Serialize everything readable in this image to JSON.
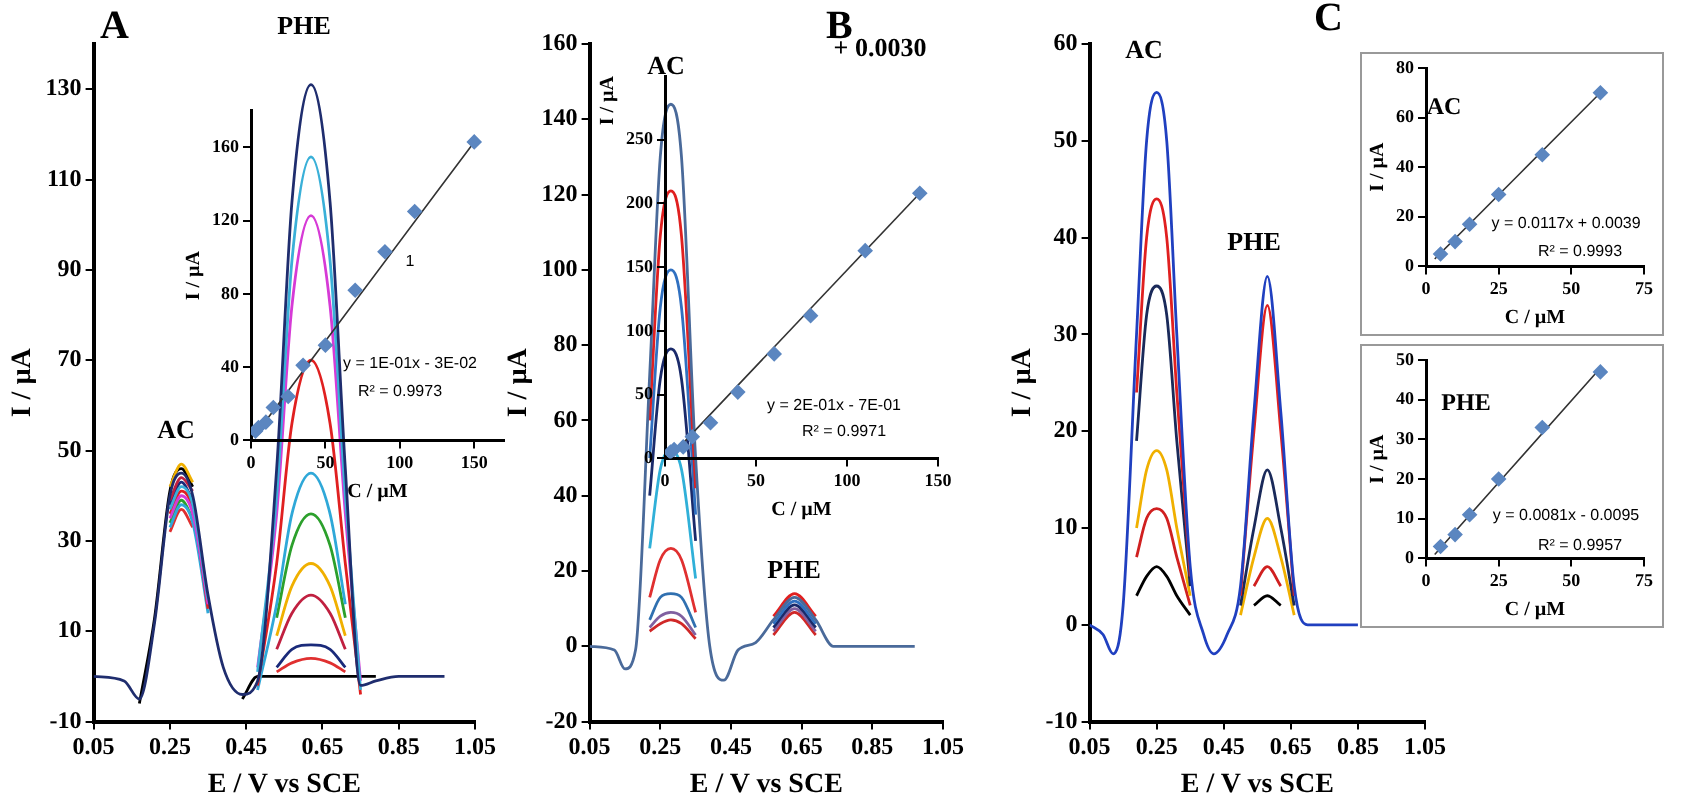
{
  "chart_data": [
    {
      "type": "line",
      "title": "A",
      "xlabel": "E / V vs SCE",
      "ylabel": "I / µA",
      "marker": "none",
      "xlim": [
        0.05,
        1.05
      ],
      "xticks": [
        0.05,
        0.25,
        0.45,
        0.65,
        0.85,
        1.05
      ],
      "ylim": [
        -10,
        140
      ],
      "yticks": [
        -10,
        10,
        30,
        50,
        70,
        90,
        110,
        130
      ],
      "x": [
        0.05,
        0.13,
        0.17,
        0.21,
        0.25,
        0.28,
        0.31,
        0.35,
        0.39,
        0.44,
        0.48,
        0.53,
        0.57,
        0.62,
        0.67,
        0.71,
        0.75,
        0.79,
        0.85,
        0.97
      ],
      "series": [
        {
          "color": "#1f2d6e",
          "values": [
            0,
            -1,
            -5,
            12,
            40,
            45,
            40,
            18,
            2,
            -4,
            -1,
            46,
            105,
            131,
            105,
            46,
            -2,
            -1,
            0,
            0
          ]
        },
        {
          "color": "#3ab0d8",
          "values": [
            null,
            null,
            null,
            null,
            37,
            42,
            38,
            17,
            null,
            null,
            1,
            40,
            92,
            115,
            92,
            40,
            -3,
            null,
            null,
            null
          ]
        },
        {
          "color": "#d63ad6",
          "values": [
            null,
            null,
            null,
            null,
            35,
            40,
            36,
            16,
            null,
            null,
            2,
            36,
            82,
            102,
            82,
            36,
            -1,
            null,
            null,
            null
          ]
        },
        {
          "color": "#e02020",
          "values": [
            null,
            null,
            null,
            null,
            36,
            41,
            37,
            15,
            null,
            null,
            -2,
            25,
            56,
            70,
            56,
            25,
            -4,
            null,
            null,
            null
          ]
        },
        {
          "color": "#2fa8d8",
          "values": [
            null,
            null,
            null,
            null,
            33,
            38,
            34,
            14,
            null,
            null,
            -3,
            16,
            36,
            45,
            36,
            16,
            null,
            null,
            null,
            null
          ]
        },
        {
          "color": "#2ca02c",
          "values": [
            null,
            null,
            null,
            null,
            34,
            39,
            35,
            null,
            null,
            null,
            null,
            13,
            29,
            36,
            29,
            13,
            null,
            null,
            null,
            null
          ]
        },
        {
          "color": "#f0b000",
          "values": [
            null,
            null,
            null,
            null,
            42,
            47,
            43,
            null,
            null,
            null,
            null,
            9,
            20,
            25,
            20,
            9,
            null,
            null,
            null,
            null
          ]
        },
        {
          "color": "#c02040",
          "values": [
            null,
            null,
            null,
            null,
            39,
            44,
            41,
            null,
            null,
            null,
            null,
            6,
            14,
            18,
            14,
            6,
            null,
            null,
            null,
            null
          ]
        },
        {
          "color": "#1a2a7a",
          "values": [
            null,
            null,
            null,
            null,
            38,
            43,
            39,
            null,
            null,
            null,
            null,
            2,
            6,
            7,
            6,
            2,
            null,
            null,
            null,
            null
          ]
        },
        {
          "color": "#e03030",
          "values": [
            null,
            null,
            null,
            null,
            32,
            37,
            33,
            null,
            null,
            null,
            null,
            1,
            3,
            4,
            3,
            1,
            null,
            null,
            null,
            null
          ]
        },
        {
          "color": "#000000",
          "values": [
            null,
            null,
            -6,
            13,
            41,
            46,
            42,
            null,
            null,
            -5,
            0,
            0,
            0,
            0,
            0,
            0,
            0,
            0,
            null,
            null
          ]
        }
      ],
      "annotations": [
        "AC",
        "PHE"
      ]
    },
    {
      "type": "scatter",
      "xlabel": "C / µM",
      "ylabel": "I / µA",
      "marker": "diamond",
      "xlim": [
        0,
        170
      ],
      "xticks": [
        0,
        50,
        100,
        150
      ],
      "ylim": [
        0,
        180
      ],
      "yticks": [
        0,
        40,
        80,
        120,
        160
      ],
      "series": [
        {
          "color": "#5b86c0",
          "x": [
            3,
            5,
            10,
            15,
            25,
            35,
            50,
            70,
            90,
            110,
            150
          ],
          "values": [
            5,
            7,
            10,
            18,
            24,
            41,
            52,
            82,
            103,
            125,
            163
          ]
        },
        {
          "type": "line",
          "marker": "none",
          "color": "#333333",
          "x": [
            2,
            150
          ],
          "values": [
            2,
            163
          ]
        }
      ],
      "annotations": [
        "1",
        "y = 1E-01x - 3E-02",
        "R² = 0.9973"
      ]
    },
    {
      "type": "line",
      "title": "B",
      "xlabel": "E / V vs SCE",
      "ylabel": "I / µA",
      "marker": "none",
      "xlim": [
        0.05,
        1.05
      ],
      "xticks": [
        0.05,
        0.25,
        0.45,
        0.65,
        0.85,
        1.05
      ],
      "ylim": [
        -20,
        160
      ],
      "yticks": [
        -20,
        0,
        20,
        40,
        60,
        80,
        100,
        120,
        140,
        160
      ],
      "x": [
        0.05,
        0.12,
        0.15,
        0.18,
        0.22,
        0.25,
        0.28,
        0.31,
        0.35,
        0.39,
        0.43,
        0.47,
        0.52,
        0.57,
        0.63,
        0.69,
        0.74,
        0.8,
        0.97
      ],
      "series": [
        {
          "color": "#4a6a9a",
          "values": [
            0,
            -1,
            -6,
            -1,
            72,
            130,
            144,
            130,
            50,
            0,
            -9,
            -1,
            1,
            7,
            13,
            7,
            0,
            0,
            0
          ]
        },
        {
          "color": "#e02020",
          "values": [
            null,
            null,
            null,
            null,
            60,
            109,
            121,
            109,
            42,
            null,
            null,
            null,
            null,
            8,
            14,
            8,
            null,
            null,
            null
          ]
        },
        {
          "color": "#3070c0",
          "values": [
            null,
            null,
            null,
            null,
            50,
            90,
            100,
            90,
            35,
            null,
            null,
            null,
            null,
            6,
            12,
            6,
            null,
            null,
            null
          ]
        },
        {
          "color": "#1a2a6a",
          "values": [
            null,
            null,
            null,
            null,
            40,
            71,
            79,
            71,
            28,
            null,
            null,
            null,
            null,
            5,
            11,
            5,
            null,
            null,
            null
          ]
        },
        {
          "color": "#30b0d8",
          "values": [
            null,
            null,
            null,
            null,
            26,
            47,
            52,
            47,
            18,
            null,
            null,
            null,
            null,
            null,
            null,
            null,
            null,
            null,
            null
          ]
        },
        {
          "color": "#e03030",
          "values": [
            null,
            null,
            null,
            null,
            13,
            23,
            26,
            23,
            9,
            null,
            null,
            null,
            null,
            null,
            null,
            null,
            null,
            null,
            null
          ]
        },
        {
          "color": "#3070b0",
          "values": [
            null,
            null,
            null,
            null,
            7,
            13,
            14,
            13,
            5,
            null,
            null,
            null,
            null,
            null,
            null,
            null,
            null,
            null,
            null
          ]
        },
        {
          "color": "#8060a0",
          "values": [
            null,
            null,
            null,
            null,
            5,
            8,
            9,
            8,
            3,
            null,
            null,
            null,
            null,
            4,
            10,
            4,
            null,
            null,
            null
          ]
        },
        {
          "color": "#d02828",
          "values": [
            null,
            null,
            null,
            null,
            4,
            6,
            7,
            6,
            2,
            null,
            null,
            null,
            null,
            3,
            9,
            3,
            null,
            null,
            null
          ]
        }
      ],
      "annotations": [
        "AC",
        "PHE",
        "+ 0.0030"
      ]
    },
    {
      "type": "scatter",
      "xlabel": "C / µM",
      "ylabel": "I / µA",
      "marker": "diamond",
      "xlim": [
        0,
        150
      ],
      "xticks": [
        0,
        50,
        100,
        150
      ],
      "ylim": [
        0,
        300
      ],
      "yticks": [
        0,
        50,
        100,
        150,
        200,
        250
      ],
      "series": [
        {
          "color": "#5b86c0",
          "x": [
            3,
            5,
            10,
            15,
            25,
            40,
            60,
            80,
            110,
            140
          ],
          "values": [
            5,
            7,
            9,
            17,
            28,
            52,
            82,
            112,
            163,
            208
          ]
        },
        {
          "type": "line",
          "marker": "none",
          "color": "#333333",
          "x": [
            2,
            140
          ],
          "values": [
            0,
            208
          ]
        }
      ],
      "annotations": [
        "y = 2E-01x - 7E-01",
        "R² = 0.9971"
      ]
    },
    {
      "type": "line",
      "title": "C",
      "xlabel": "E / V vs SCE",
      "ylabel": "I / µA",
      "marker": "none",
      "xlim": [
        0.05,
        1.05
      ],
      "xticks": [
        0.05,
        0.25,
        0.45,
        0.65,
        0.85,
        1.05
      ],
      "ylim": [
        -10,
        60
      ],
      "yticks": [
        -10,
        0,
        10,
        20,
        30,
        40,
        50,
        60
      ],
      "x": [
        0.05,
        0.09,
        0.12,
        0.15,
        0.19,
        0.22,
        0.25,
        0.28,
        0.31,
        0.35,
        0.39,
        0.42,
        0.46,
        0.5,
        0.54,
        0.58,
        0.62,
        0.66,
        0.7,
        0.85
      ],
      "series": [
        {
          "color": "#2040c0",
          "values": [
            0,
            -1,
            -3,
            2,
            30,
            50,
            55,
            50,
            30,
            6,
            -1,
            -3,
            -1,
            4,
            22,
            36,
            22,
            4,
            0,
            0
          ]
        },
        {
          "color": "#e02020",
          "values": [
            null,
            null,
            null,
            null,
            24,
            40,
            44,
            40,
            24,
            5,
            null,
            null,
            null,
            3,
            20,
            33,
            20,
            3,
            null,
            null
          ]
        },
        {
          "color": "#1a2a5a",
          "values": [
            null,
            null,
            null,
            null,
            19,
            32,
            35,
            32,
            19,
            4,
            null,
            null,
            null,
            2,
            10,
            16,
            10,
            2,
            null,
            null
          ]
        },
        {
          "color": "#f0b000",
          "values": [
            null,
            null,
            null,
            null,
            10,
            16,
            18,
            16,
            10,
            3,
            null,
            null,
            null,
            1,
            7,
            11,
            7,
            1,
            null,
            null
          ]
        },
        {
          "color": "#d02020",
          "values": [
            null,
            null,
            null,
            null,
            7,
            11,
            12,
            11,
            7,
            2,
            null,
            null,
            null,
            null,
            4,
            6,
            4,
            null,
            null,
            null
          ]
        },
        {
          "color": "#000000",
          "values": [
            null,
            null,
            null,
            null,
            3,
            5,
            6,
            5,
            3,
            1,
            null,
            null,
            null,
            null,
            2,
            3,
            2,
            null,
            null,
            null
          ]
        }
      ],
      "annotations": [
        "AC",
        "PHE"
      ]
    },
    {
      "type": "scatter",
      "xlabel": "C / µM",
      "ylabel": "I / µA",
      "marker": "diamond",
      "xlim": [
        0,
        75
      ],
      "xticks": [
        0,
        25,
        50,
        75
      ],
      "ylim": [
        0,
        80
      ],
      "yticks": [
        0,
        20,
        40,
        60,
        80
      ],
      "series": [
        {
          "color": "#5b86c0",
          "x": [
            5,
            10,
            15,
            25,
            40,
            60
          ],
          "values": [
            5,
            10,
            17,
            29,
            45,
            70
          ]
        },
        {
          "type": "line",
          "marker": "none",
          "color": "#333333",
          "x": [
            3,
            60
          ],
          "values": [
            3,
            70
          ]
        }
      ],
      "annotations": [
        "AC",
        "y = 0.0117x + 0.0039",
        "R² = 0.9993"
      ]
    },
    {
      "type": "scatter",
      "xlabel": "C / µM",
      "ylabel": "I / µA",
      "marker": "diamond",
      "xlim": [
        0,
        75
      ],
      "xticks": [
        0,
        25,
        50,
        75
      ],
      "ylim": [
        0,
        50
      ],
      "yticks": [
        0,
        10,
        20,
        30,
        40,
        50
      ],
      "series": [
        {
          "color": "#5b86c0",
          "x": [
            5,
            10,
            15,
            25,
            40,
            60
          ],
          "values": [
            3,
            6,
            11,
            20,
            33,
            47
          ]
        },
        {
          "type": "line",
          "marker": "none",
          "color": "#333333",
          "x": [
            3,
            60
          ],
          "values": [
            1,
            48
          ]
        }
      ],
      "annotations": [
        "PHE",
        "y = 0.0081x - 0.0095",
        "R² = 0.9957"
      ]
    }
  ]
}
